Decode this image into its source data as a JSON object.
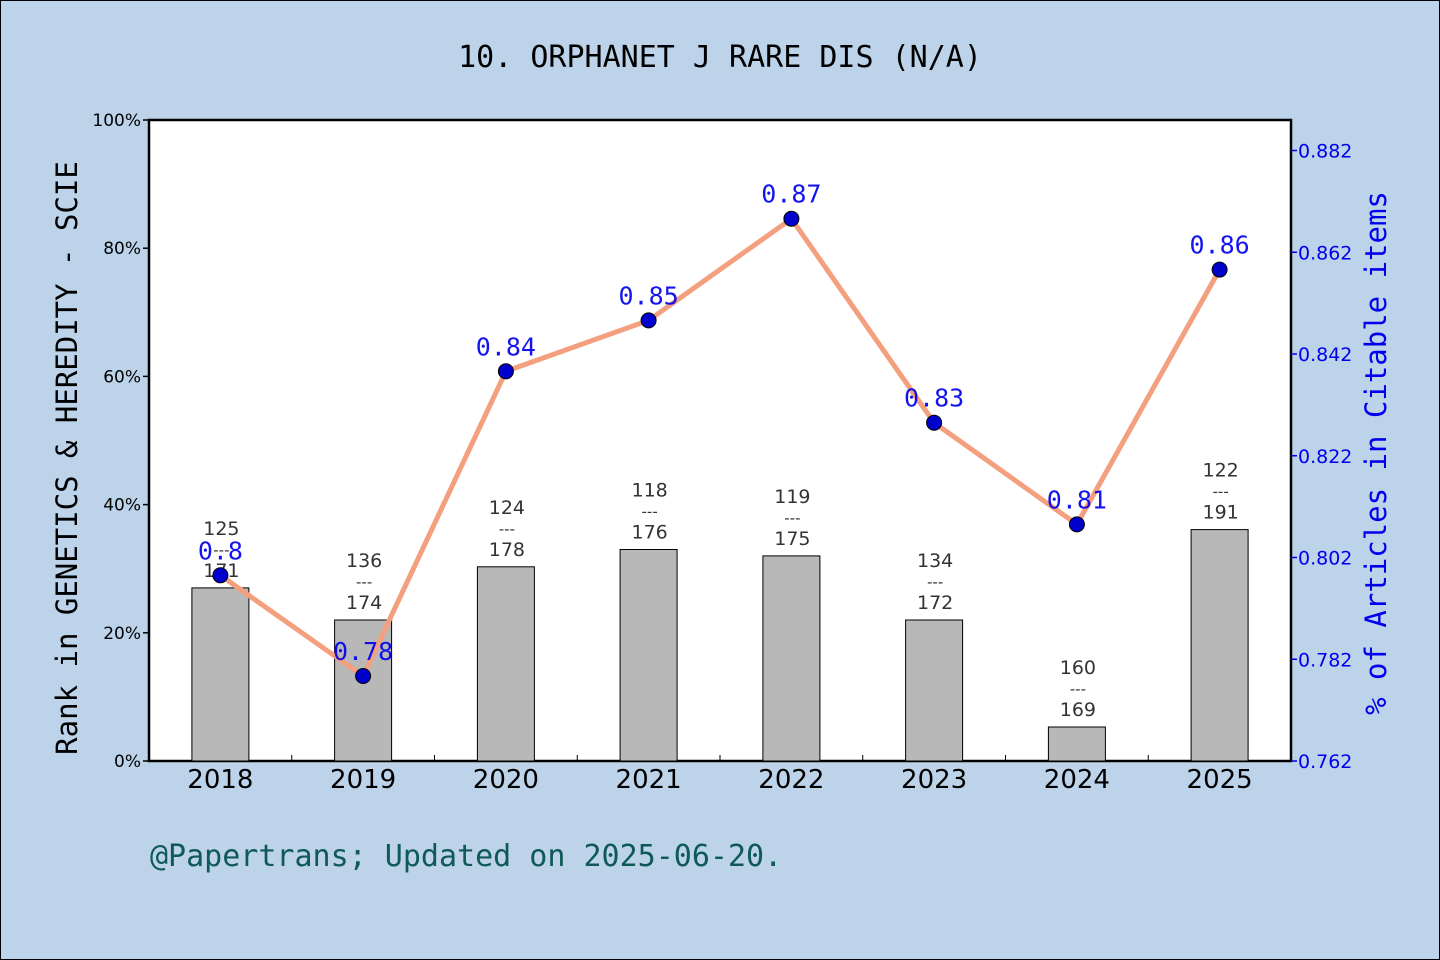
{
  "colors": {
    "background": "#bcd3ea",
    "plot_background": "#ffffff",
    "bar_fill": "#b8b8b8",
    "line": "#f4a07f",
    "marker": "#0000cc",
    "right_axis": "#0000ee",
    "footer": "#0f5a57"
  },
  "footer": "@Papertrans; Updated on 2025-06-20.",
  "chart_data": {
    "type": "bar",
    "title": "10. ORPHANET J RARE DIS (N/A)",
    "ylabel_left": "Rank in GENETICS & HEREDITY - SCIE",
    "ylabel_right": "% of Articles in Citable items",
    "categories": [
      "2018",
      "2019",
      "2020",
      "2021",
      "2022",
      "2023",
      "2024",
      "2025"
    ],
    "left_axis": {
      "ylim": [
        0,
        100
      ],
      "ticks": [
        0,
        20,
        40,
        60,
        80,
        100
      ],
      "tick_labels": [
        "0%",
        "20%",
        "40%",
        "60%",
        "80%",
        "100%"
      ]
    },
    "right_axis": {
      "ylim": [
        0.762,
        0.888
      ],
      "ticks": [
        0.762,
        0.782,
        0.802,
        0.822,
        0.842,
        0.862,
        0.882
      ],
      "tick_labels": [
        "0.762",
        "0.782",
        "0.802",
        "0.822",
        "0.842",
        "0.862",
        "0.882"
      ]
    },
    "bars": {
      "values": [
        27,
        22,
        30.3,
        33,
        32,
        22,
        5.3,
        36.1
      ],
      "rank_labels": [
        {
          "rank": "125",
          "sep": "---",
          "total": "171"
        },
        {
          "rank": "136",
          "sep": "---",
          "total": "174"
        },
        {
          "rank": "124",
          "sep": "---",
          "total": "178"
        },
        {
          "rank": "118",
          "sep": "---",
          "total": "176"
        },
        {
          "rank": "119",
          "sep": "---",
          "total": "175"
        },
        {
          "rank": "134",
          "sep": "---",
          "total": "172"
        },
        {
          "rank": "160",
          "sep": "---",
          "total": "169"
        },
        {
          "rank": "122",
          "sep": "---",
          "total": "191"
        }
      ]
    },
    "line": {
      "values": [
        0.7985,
        0.7787,
        0.8386,
        0.8486,
        0.8686,
        0.8285,
        0.8085,
        0.8586
      ],
      "labels": [
        "0.8",
        "0.78",
        "0.84",
        "0.85",
        "0.87",
        "0.83",
        "0.81",
        "0.86"
      ]
    },
    "grid": false,
    "legend": "none"
  }
}
